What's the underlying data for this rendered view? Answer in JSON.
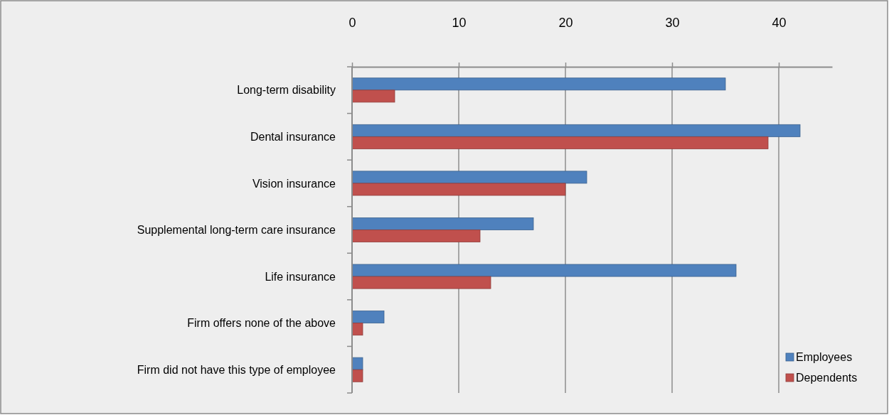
{
  "chart_data": {
    "type": "bar",
    "orientation": "horizontal",
    "categories": [
      "Long-term disability",
      "Dental insurance",
      "Vision insurance",
      "Supplemental long-term care insurance",
      "Life insurance",
      "Firm offers none of the above",
      "Firm did not have this type of employee"
    ],
    "series": [
      {
        "name": "Employees",
        "color": "#4f81bd",
        "values": [
          35,
          42,
          22,
          17,
          36,
          3,
          1
        ]
      },
      {
        "name": "Dependents",
        "color": "#c0504d",
        "values": [
          4,
          39,
          20,
          12,
          13,
          1,
          1
        ]
      }
    ],
    "xlim": [
      0,
      45
    ],
    "xticks": [
      0,
      10,
      20,
      30,
      40
    ],
    "grid": "x",
    "legend": "bottom right"
  }
}
